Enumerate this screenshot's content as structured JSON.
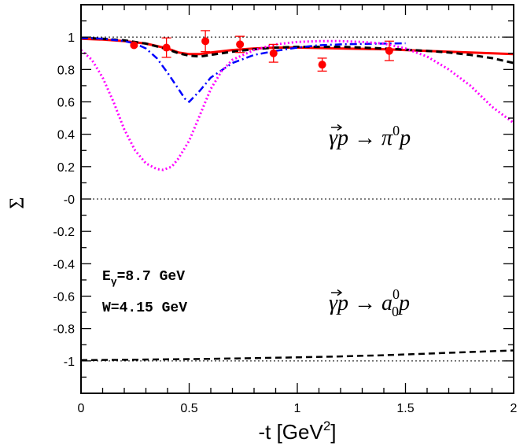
{
  "chart_data": {
    "type": "line",
    "xlabel": "-t [GeV",
    "xlabel_sup": "2",
    "xlabel_close": "]",
    "ylabel": "Σ",
    "xlim": [
      0,
      2
    ],
    "ylim": [
      -1.2,
      1.2
    ],
    "x_ticks": [
      {
        "value": 0,
        "label": "0"
      },
      {
        "value": 0.5,
        "label": "0.5"
      },
      {
        "value": 1,
        "label": "1"
      },
      {
        "value": 1.5,
        "label": "1.5"
      },
      {
        "value": 2,
        "label": "2"
      }
    ],
    "y_ticks": [
      {
        "value": 1,
        "label": "1"
      },
      {
        "value": 0.8,
        "label": "0.8"
      },
      {
        "value": 0.6,
        "label": "0.6"
      },
      {
        "value": 0.4,
        "label": "0.4"
      },
      {
        "value": 0.2,
        "label": "0.2"
      },
      {
        "value": 0,
        "label": "-0"
      },
      {
        "value": -0.2,
        "label": "-0.2"
      },
      {
        "value": -0.4,
        "label": "-0.4"
      },
      {
        "value": -0.6,
        "label": "-0.6"
      },
      {
        "value": -0.8,
        "label": "-0.8"
      },
      {
        "value": -1,
        "label": "-1"
      }
    ],
    "reference_lines": [
      1,
      0,
      -1
    ],
    "annotations": {
      "energy_prefix": "E",
      "energy_sub": "γ",
      "energy_value": "=8.7 GeV",
      "w_label": "W=4.15 GeV",
      "pi0_reaction": "γp → π",
      "pi0_sup": "0",
      "pi0_tail": "p",
      "a0_reaction": "γp → a",
      "a0_sup": "0",
      "a0_sub": "0",
      "a0_tail": "p"
    },
    "series": [
      {
        "name": "pi0-model-red",
        "color": "#ff0000",
        "dash": "",
        "width": 3,
        "x": [
          0,
          0.1,
          0.2,
          0.3,
          0.4,
          0.45,
          0.5,
          0.55,
          0.6,
          0.7,
          0.8,
          0.9,
          1.0,
          1.2,
          1.4,
          1.6,
          1.8,
          2.0
        ],
        "y": [
          0.99,
          0.985,
          0.975,
          0.96,
          0.93,
          0.905,
          0.895,
          0.895,
          0.905,
          0.92,
          0.93,
          0.935,
          0.935,
          0.93,
          0.925,
          0.915,
          0.905,
          0.895
        ]
      },
      {
        "name": "pi0-model-black-dashed",
        "color": "#000000",
        "dash": "8,5",
        "width": 3,
        "x": [
          0,
          0.1,
          0.2,
          0.3,
          0.4,
          0.45,
          0.5,
          0.55,
          0.6,
          0.7,
          0.8,
          0.9,
          1.0,
          1.2,
          1.4,
          1.6,
          1.7,
          1.8,
          1.9,
          2.0
        ],
        "y": [
          0.995,
          0.99,
          0.98,
          0.96,
          0.925,
          0.9,
          0.885,
          0.88,
          0.89,
          0.91,
          0.925,
          0.935,
          0.94,
          0.94,
          0.93,
          0.915,
          0.905,
          0.89,
          0.87,
          0.84
        ]
      },
      {
        "name": "pi0-model-blue-dashdot",
        "color": "#0000ff",
        "dash": "9,4,2,4",
        "width": 2.5,
        "x": [
          0,
          0.1,
          0.2,
          0.25,
          0.3,
          0.35,
          0.4,
          0.45,
          0.48,
          0.5,
          0.55,
          0.6,
          0.7,
          0.8,
          0.9,
          1.0,
          1.1,
          1.2,
          1.3,
          1.4,
          1.5
        ],
        "y": [
          0.995,
          0.99,
          0.975,
          0.96,
          0.93,
          0.87,
          0.78,
          0.68,
          0.62,
          0.6,
          0.67,
          0.75,
          0.84,
          0.89,
          0.915,
          0.935,
          0.95,
          0.955,
          0.958,
          0.96,
          0.962
        ]
      },
      {
        "name": "pi0-model-magenta-dotted",
        "color": "#ff00ff",
        "dash": "2,3",
        "width": 3,
        "x": [
          0,
          0.05,
          0.1,
          0.15,
          0.2,
          0.25,
          0.3,
          0.35,
          0.38,
          0.42,
          0.45,
          0.5,
          0.55,
          0.6,
          0.65,
          0.7,
          0.8,
          0.9,
          1.0,
          1.1,
          1.2,
          1.3,
          1.4,
          1.5,
          1.6,
          1.7,
          1.8,
          1.9,
          2.0
        ],
        "y": [
          0.92,
          0.86,
          0.75,
          0.6,
          0.43,
          0.3,
          0.22,
          0.185,
          0.18,
          0.2,
          0.25,
          0.36,
          0.52,
          0.68,
          0.79,
          0.86,
          0.92,
          0.955,
          0.97,
          0.975,
          0.975,
          0.97,
          0.96,
          0.93,
          0.88,
          0.8,
          0.7,
          0.57,
          0.47
        ]
      },
      {
        "name": "a0-model-black-dashed",
        "color": "#000000",
        "dash": "8,5",
        "width": 2.5,
        "x": [
          0,
          0.2,
          0.4,
          0.6,
          0.8,
          1.0,
          1.2,
          1.4,
          1.5,
          1.6,
          1.7,
          1.8,
          1.9,
          2.0
        ],
        "y": [
          -0.995,
          -0.993,
          -0.99,
          -0.987,
          -0.983,
          -0.978,
          -0.972,
          -0.965,
          -0.96,
          -0.955,
          -0.95,
          -0.945,
          -0.94,
          -0.935
        ]
      }
    ],
    "data_points": {
      "name": "pi0-data",
      "color": "#ff0000",
      "points": [
        {
          "x": 0.245,
          "y": 0.95,
          "err": 0.0
        },
        {
          "x": 0.395,
          "y": 0.935,
          "err": 0.06
        },
        {
          "x": 0.575,
          "y": 0.975,
          "err": 0.065
        },
        {
          "x": 0.735,
          "y": 0.955,
          "err": 0.05
        },
        {
          "x": 0.89,
          "y": 0.9,
          "err": 0.055
        },
        {
          "x": 1.115,
          "y": 0.83,
          "err": 0.04
        },
        {
          "x": 1.425,
          "y": 0.915,
          "err": 0.06
        }
      ]
    }
  }
}
